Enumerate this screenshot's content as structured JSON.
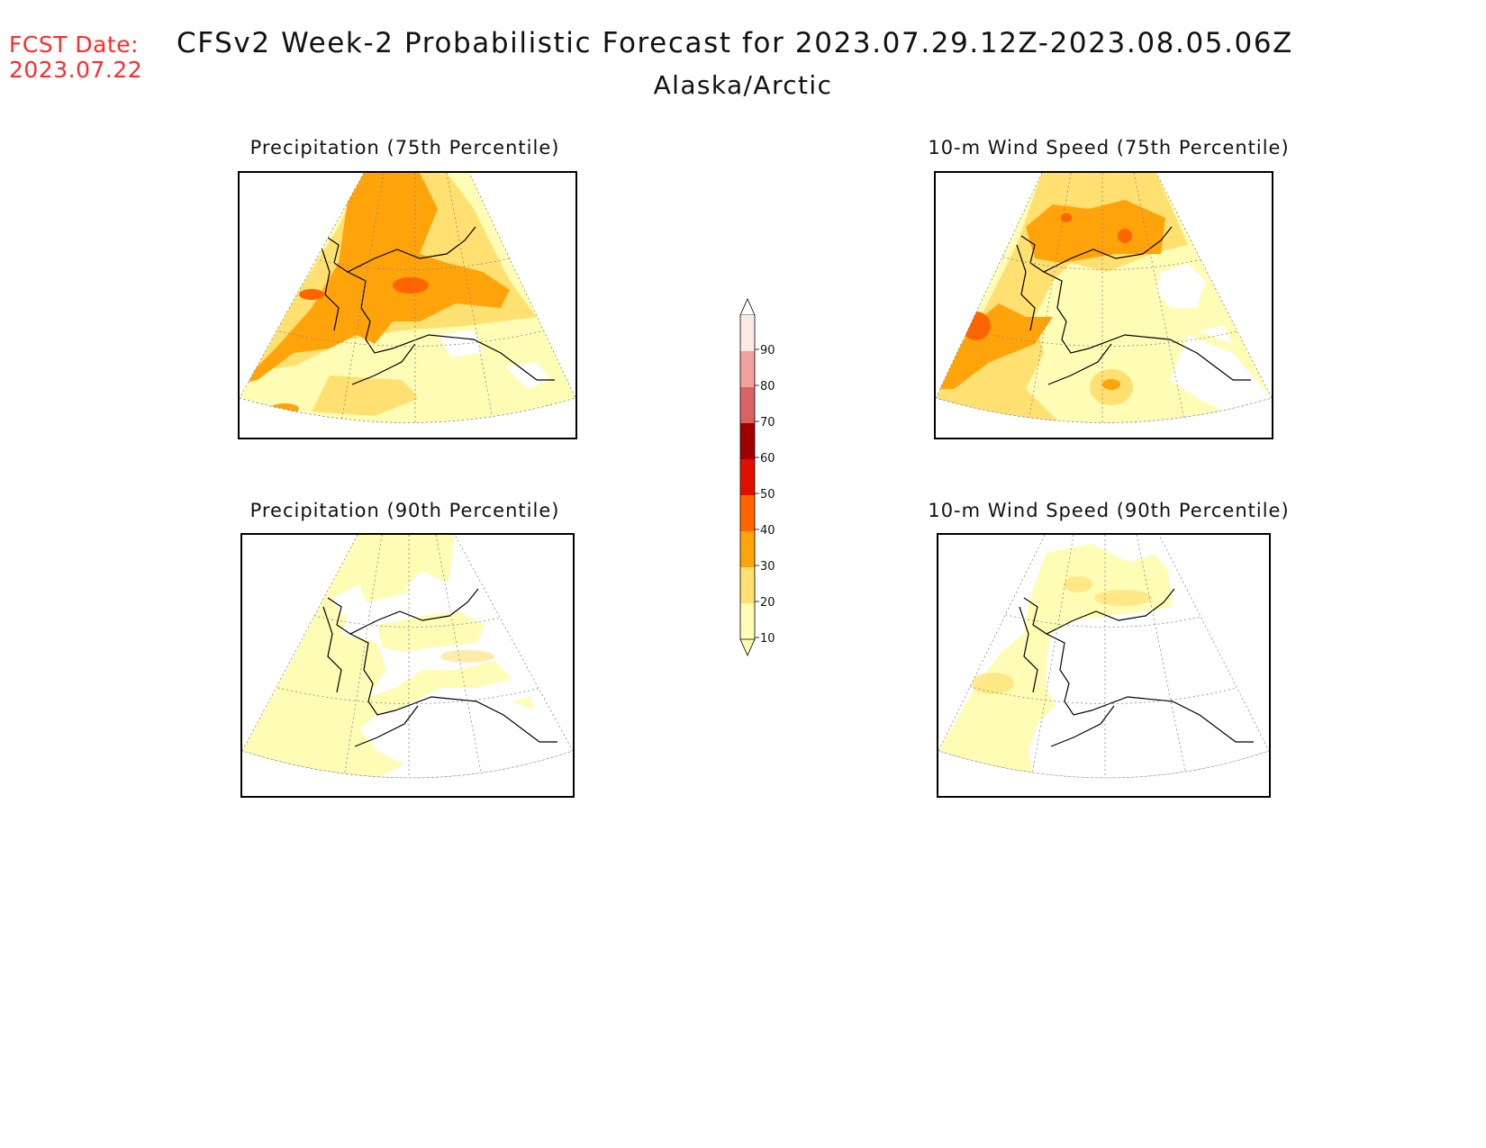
{
  "header": {
    "fcst_date_label": "FCST Date:",
    "fcst_date_value": "2023.07.22",
    "title": "CFSv2 Week-2 Probabilistic Forecast for 2023.07.29.12Z-2023.08.05.06Z",
    "region": "Alaska/Arctic"
  },
  "panels": [
    {
      "id": "precip-75",
      "title": "Precipitation (75th Percentile)"
    },
    {
      "id": "wind-75",
      "title": "10-m Wind Speed (75th Percentile)"
    },
    {
      "id": "precip-90",
      "title": "Precipitation (90th Percentile)"
    },
    {
      "id": "wind-90",
      "title": "10-m Wind Speed (90th Percentile)"
    }
  ],
  "colorbar": {
    "levels": [
      "10",
      "20",
      "30",
      "40",
      "50",
      "60",
      "70",
      "80",
      "90"
    ],
    "colors": [
      "#fffcb5",
      "#ffe070",
      "#ffa30a",
      "#ff6400",
      "#e01000",
      "#a00000",
      "#d96363",
      "#f2a0a0",
      "#fde8e8"
    ]
  }
}
